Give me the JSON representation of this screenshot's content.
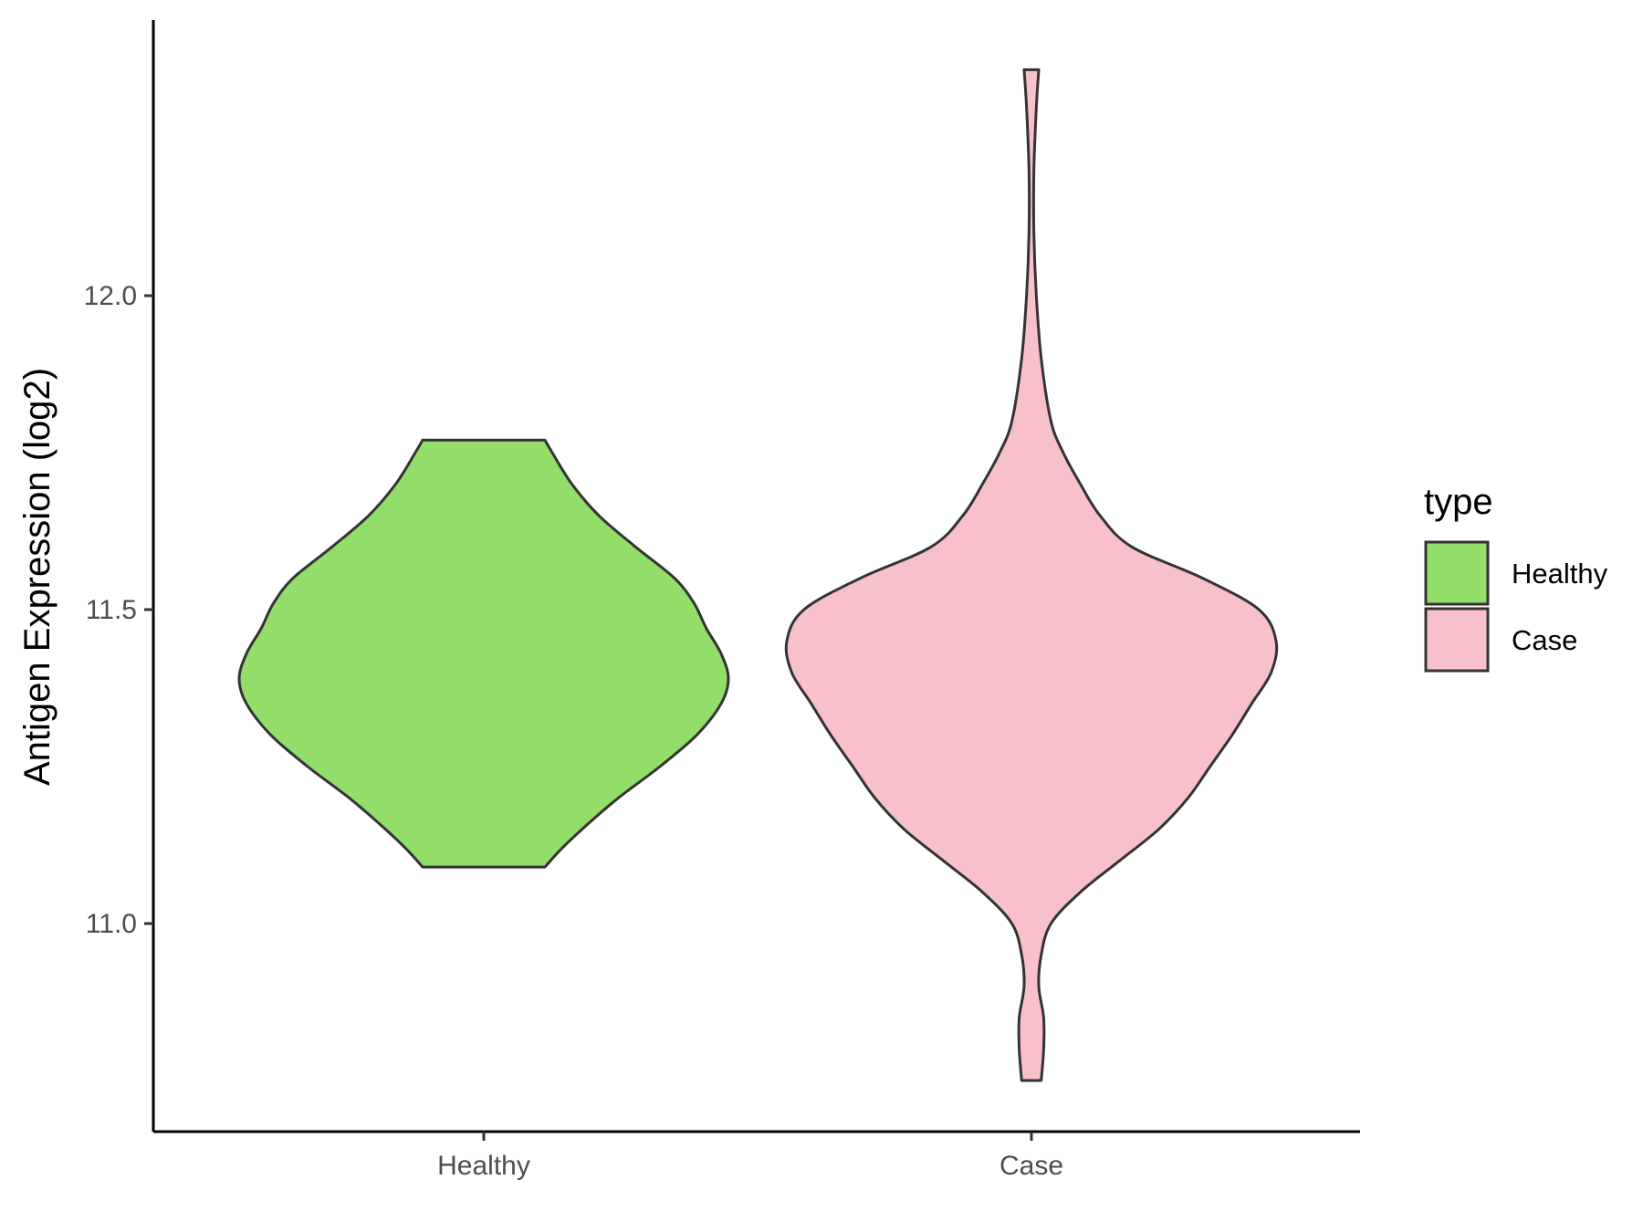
{
  "chart_data": {
    "type": "violin",
    "title": "",
    "xlabel": "",
    "ylabel": "Antigen Expression (log2)",
    "categories": [
      "Healthy",
      "Case"
    ],
    "ylim": [
      10.7,
      12.42
    ],
    "yticks": [
      11.0,
      11.5,
      12.0
    ],
    "ytick_labels": [
      "11.0",
      "11.5",
      "12.0"
    ],
    "grid": false,
    "legend": {
      "title": "type",
      "position": "right",
      "entries": [
        {
          "label": "Healthy",
          "color": "#93DD6B"
        },
        {
          "label": "Case",
          "color": "#F8C0CB"
        }
      ]
    },
    "series": [
      {
        "name": "Healthy",
        "color": "#93DD6B",
        "outline": "#333333",
        "density": [
          [
            11.09,
            0.25
          ],
          [
            11.12,
            0.32
          ],
          [
            11.16,
            0.43
          ],
          [
            11.2,
            0.55
          ],
          [
            11.25,
            0.72
          ],
          [
            11.3,
            0.87
          ],
          [
            11.35,
            0.97
          ],
          [
            11.39,
            1.0
          ],
          [
            11.43,
            0.97
          ],
          [
            11.47,
            0.91
          ],
          [
            11.51,
            0.86
          ],
          [
            11.55,
            0.78
          ],
          [
            11.6,
            0.62
          ],
          [
            11.65,
            0.47
          ],
          [
            11.7,
            0.36
          ],
          [
            11.75,
            0.28
          ],
          [
            11.77,
            0.25
          ]
        ]
      },
      {
        "name": "Case",
        "color": "#F8C0CB",
        "outline": "#333333",
        "density": [
          [
            10.75,
            0.04
          ],
          [
            10.8,
            0.05
          ],
          [
            10.85,
            0.05
          ],
          [
            10.9,
            0.03
          ],
          [
            10.95,
            0.04
          ],
          [
            11.0,
            0.08
          ],
          [
            11.05,
            0.2
          ],
          [
            11.1,
            0.36
          ],
          [
            11.15,
            0.52
          ],
          [
            11.2,
            0.64
          ],
          [
            11.25,
            0.73
          ],
          [
            11.3,
            0.82
          ],
          [
            11.35,
            0.9
          ],
          [
            11.4,
            0.98
          ],
          [
            11.45,
            1.0
          ],
          [
            11.5,
            0.93
          ],
          [
            11.55,
            0.7
          ],
          [
            11.6,
            0.41
          ],
          [
            11.65,
            0.28
          ],
          [
            11.7,
            0.2
          ],
          [
            11.75,
            0.13
          ],
          [
            11.8,
            0.08
          ],
          [
            11.9,
            0.04
          ],
          [
            12.0,
            0.02
          ],
          [
            12.1,
            0.01
          ],
          [
            12.2,
            0.01
          ],
          [
            12.3,
            0.02
          ],
          [
            12.36,
            0.03
          ]
        ]
      }
    ]
  }
}
